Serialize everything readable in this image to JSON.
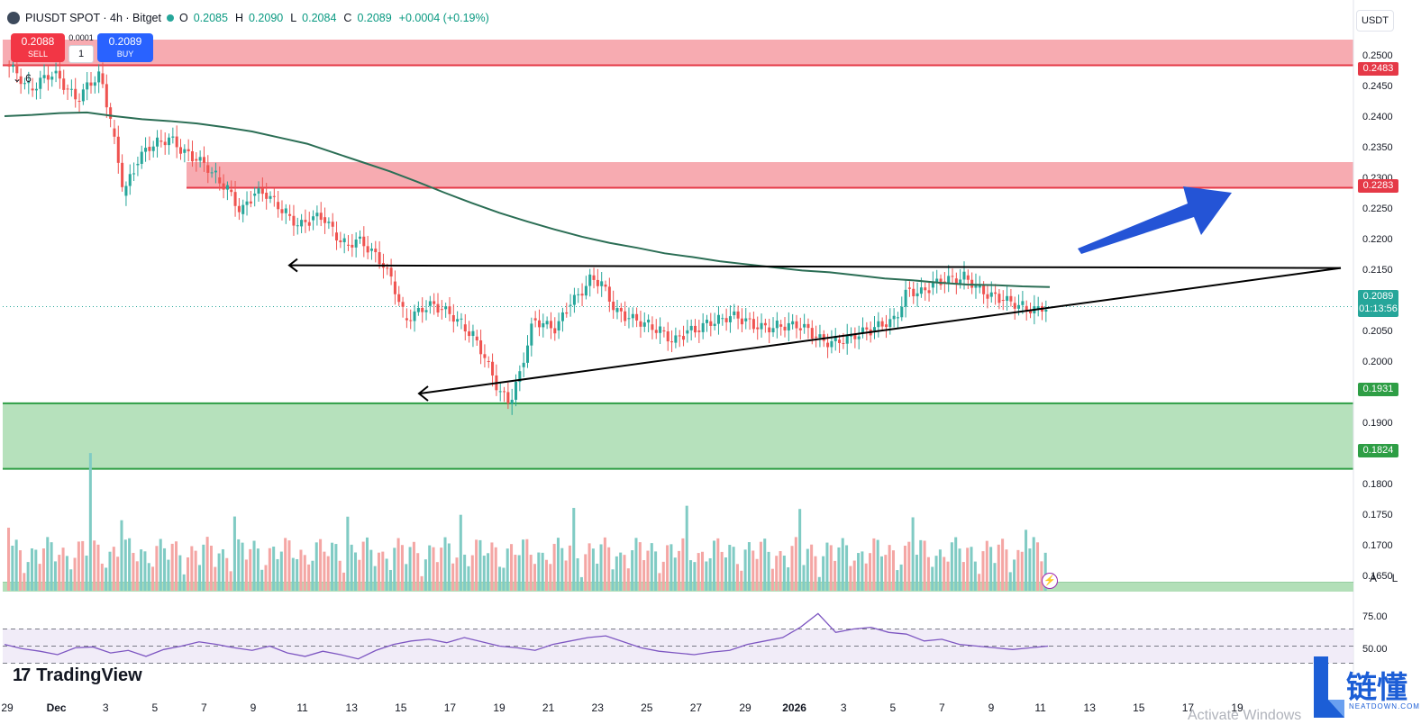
{
  "header": {
    "symbol_title": "PIUSDT SPOT · 4h · Bitget",
    "open_label": "O",
    "open": "0.2085",
    "high_label": "H",
    "high": "0.2090",
    "low_label": "L",
    "low": "0.2084",
    "close_label": "C",
    "close": "0.2089",
    "change": "+0.0004 (+0.19%)",
    "currency": "USDT"
  },
  "trade": {
    "sell_price": "0.2088",
    "sell_label": "SELL",
    "spread": "0.0001",
    "quantity": "1",
    "buy_price": "0.2089",
    "buy_label": "BUY"
  },
  "collapse_count": "6",
  "price_tags": {
    "zone_top_1": "0.2483",
    "zone_top_2": "0.2283",
    "last_price": "0.2089",
    "countdown": "01:13:56",
    "zone_bottom_top": "0.1931",
    "zone_bottom_bottom": "0.1824"
  },
  "axis_buttons": {
    "auto": "A",
    "log": "L"
  },
  "rsi_labels": [
    "75.00",
    "50.00"
  ],
  "branding": {
    "tradingview": "TradingView",
    "watermark": "链懂",
    "watermark_sub": "NEATDOWN.COM",
    "activate": "Activate Windows"
  },
  "colors": {
    "up": "#26a69a",
    "down": "#ef5350",
    "resistance_zone": "#f7a7ad",
    "support_zone": "#b2dfb8",
    "ma": "#2b6e55",
    "rsi": "#7e57c2",
    "arrow": "#2454d6"
  },
  "chart_data": {
    "type": "candlestick",
    "title": "PIUSDT SPOT · 4h · Bitget",
    "y_axis_ticks": [
      "0.2500",
      "0.2450",
      "0.2400",
      "0.2350",
      "0.2300",
      "0.2250",
      "0.2200",
      "0.2150",
      "0.2100",
      "0.2050",
      "0.2000",
      "0.1950",
      "0.1900",
      "0.1850",
      "0.1800",
      "0.1750",
      "0.1700",
      "0.1650"
    ],
    "ylim": [
      0.1625,
      0.2525
    ],
    "x_axis_ticks": [
      "29",
      "Dec",
      "3",
      "5",
      "7",
      "9",
      "11",
      "13",
      "15",
      "17",
      "19",
      "21",
      "23",
      "25",
      "27",
      "29",
      "2026",
      "3",
      "5",
      "7",
      "9",
      "11",
      "13",
      "15",
      "17",
      "19"
    ],
    "closes": [
      0.2465,
      0.2445,
      0.2462,
      0.247,
      0.2445,
      0.2425,
      0.2455,
      0.247,
      0.238,
      0.227,
      0.232,
      0.235,
      0.236,
      0.2365,
      0.234,
      0.233,
      0.232,
      0.23,
      0.228,
      0.224,
      0.227,
      0.2275,
      0.226,
      0.224,
      0.222,
      0.223,
      0.2235,
      0.221,
      0.219,
      0.22,
      0.218,
      0.216,
      0.213,
      0.207,
      0.208,
      0.209,
      0.2085,
      0.2075,
      0.206,
      0.204,
      0.2,
      0.195,
      0.193,
      0.199,
      0.207,
      0.206,
      0.205,
      0.209,
      0.211,
      0.214,
      0.2125,
      0.208,
      0.207,
      0.2065,
      0.206,
      0.205,
      0.203,
      0.2045,
      0.205,
      0.2065,
      0.207,
      0.2075,
      0.2065,
      0.2055,
      0.2055,
      0.206,
      0.206,
      0.2055,
      0.204,
      0.203,
      0.2035,
      0.204,
      0.2045,
      0.205,
      0.206,
      0.207,
      0.212,
      0.211,
      0.212,
      0.213,
      0.2135,
      0.214,
      0.212,
      0.2105,
      0.21,
      0.2095,
      0.209,
      0.2085,
      0.2089
    ],
    "ma_series": [
      0.24,
      0.2402,
      0.2405,
      0.2406,
      0.24,
      0.2395,
      0.2392,
      0.2388,
      0.2382,
      0.2375,
      0.2365,
      0.2355,
      0.234,
      0.2325,
      0.231,
      0.2293,
      0.2275,
      0.2258,
      0.2242,
      0.2228,
      0.2215,
      0.2203,
      0.2193,
      0.2185,
      0.2176,
      0.217,
      0.2163,
      0.2158,
      0.2153,
      0.2148,
      0.2145,
      0.214,
      0.2135,
      0.2132,
      0.2128,
      0.2125,
      0.2124,
      0.2122,
      0.2121
    ],
    "rsi_series": [
      52,
      47,
      44,
      40,
      48,
      49,
      42,
      45,
      38,
      46,
      50,
      55,
      52,
      48,
      45,
      50,
      42,
      38,
      44,
      40,
      35,
      45,
      52,
      56,
      58,
      54,
      60,
      55,
      50,
      48,
      45,
      52,
      56,
      60,
      62,
      55,
      48,
      44,
      42,
      40,
      43,
      45,
      52,
      56,
      60,
      72,
      88,
      66,
      70,
      72,
      66,
      64,
      56,
      58,
      52,
      50,
      48,
      46,
      48,
      50
    ],
    "rsi_ylim": [
      0,
      100
    ],
    "rsi_levels": [
      70,
      50,
      30
    ],
    "zones": [
      {
        "kind": "resistance",
        "top": 0.2525,
        "bottom": 0.2483
      },
      {
        "kind": "resistance",
        "top": 0.2325,
        "bottom": 0.2283
      },
      {
        "kind": "support",
        "top": 0.1931,
        "bottom": 0.1824
      }
    ],
    "trendlines": [
      {
        "kind": "horizontal_resistance",
        "price": 0.2155
      },
      {
        "kind": "rising_support",
        "from": 0.1915,
        "to": 0.2155
      }
    ],
    "last_price": 0.2089
  }
}
